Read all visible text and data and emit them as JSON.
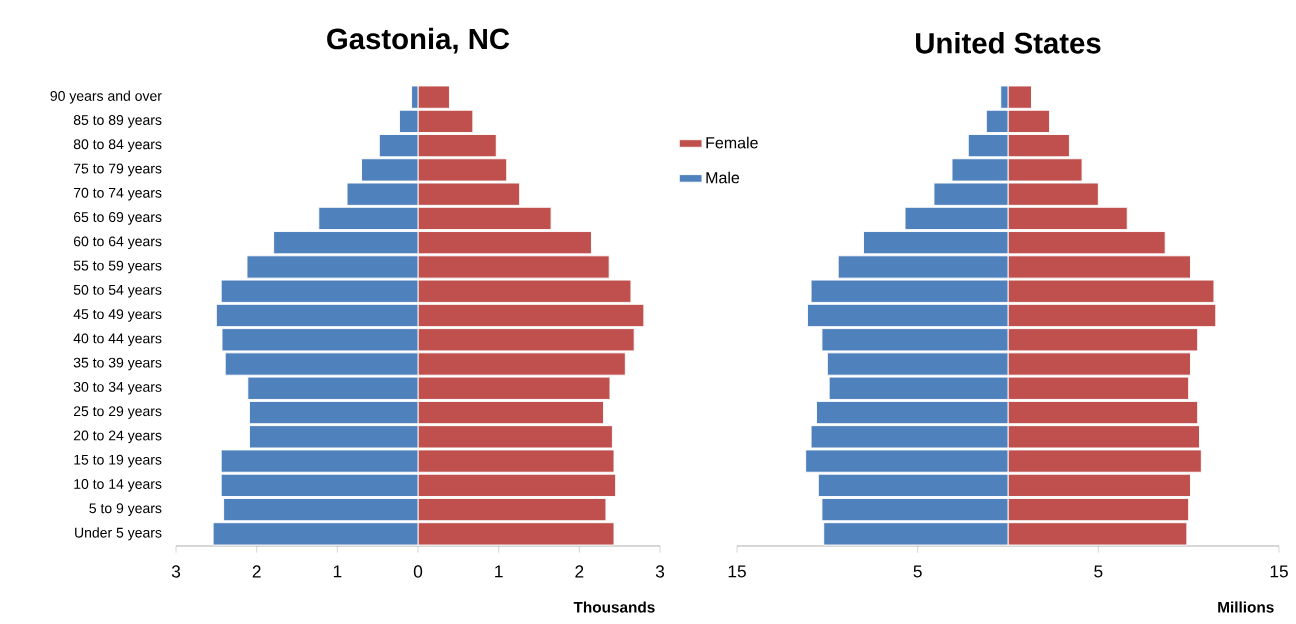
{
  "chart_data": [
    {
      "type": "bar",
      "orientation": "horizontal",
      "stacked": true,
      "title": "Gastonia, NC",
      "xlabel": "Thousands",
      "legend": "right",
      "categories": [
        "90 years and over",
        "85 to 89 years",
        "80 to 84 years",
        "75 to 79 years",
        "70 to 74 years",
        "65 to 69 years",
        "60 to 64 years",
        "55 to 59 years",
        "50 to 54 years",
        "45 to 49 years",
        "40 to 44 years",
        "35 to 39 years",
        "30 to 34 years",
        "25 to 29 years",
        "20 to 24 years",
        "15 to 19 years",
        "10 to 14 years",
        "5 to 9 years",
        "Under 5 years"
      ],
      "xlim": [
        -3,
        3
      ],
      "xticks": [
        {
          "value": -3,
          "label": "3"
        },
        {
          "value": -2,
          "label": "2"
        },
        {
          "value": -1,
          "label": "1"
        },
        0,
        1,
        2,
        3
      ],
      "series": [
        {
          "name": "Female",
          "color": "#c0504d",
          "values": [
            0.39,
            0.68,
            0.97,
            1.1,
            1.26,
            1.65,
            2.15,
            2.37,
            2.64,
            2.8,
            2.68,
            2.57,
            2.38,
            2.3,
            2.41,
            2.43,
            2.45,
            2.33,
            2.43
          ]
        },
        {
          "name": "Male",
          "color": "#4f81bd",
          "values": [
            -0.08,
            -0.23,
            -0.48,
            -0.7,
            -0.88,
            -1.23,
            -1.79,
            -2.12,
            -2.44,
            -2.5,
            -2.43,
            -2.39,
            -2.11,
            -2.09,
            -2.09,
            -2.44,
            -2.44,
            -2.41,
            -2.54
          ]
        }
      ]
    },
    {
      "type": "bar",
      "orientation": "horizontal",
      "stacked": true,
      "title": "United States",
      "xlabel": "Millions",
      "tick_labels": "x",
      "categories": [
        null,
        null,
        null,
        null,
        null,
        null,
        null,
        null,
        null,
        null,
        null,
        null,
        null,
        null,
        null,
        null,
        null,
        null,
        null
      ],
      "xlim": [
        -15,
        15
      ],
      "xticks": [
        {
          "value": -15,
          "label": "15"
        },
        {
          "value": -5,
          "label": "5"
        },
        5,
        15
      ],
      "series": [
        {
          "color": "#c0504d",
          "values": [
            1.3,
            2.3,
            3.4,
            4.1,
            5.0,
            6.6,
            8.7,
            10.1,
            11.4,
            11.5,
            10.5,
            10.1,
            10.0,
            10.5,
            10.6,
            10.7,
            10.1,
            10.0,
            9.9
          ]
        },
        {
          "color": "#4f81bd",
          "values": [
            -0.4,
            -1.2,
            -2.2,
            -3.1,
            -4.1,
            -5.7,
            -8.0,
            -9.4,
            -10.9,
            -11.1,
            -10.3,
            -10.0,
            -9.9,
            -10.6,
            -10.9,
            -11.2,
            -10.5,
            -10.3,
            -10.2
          ]
        }
      ]
    }
  ]
}
